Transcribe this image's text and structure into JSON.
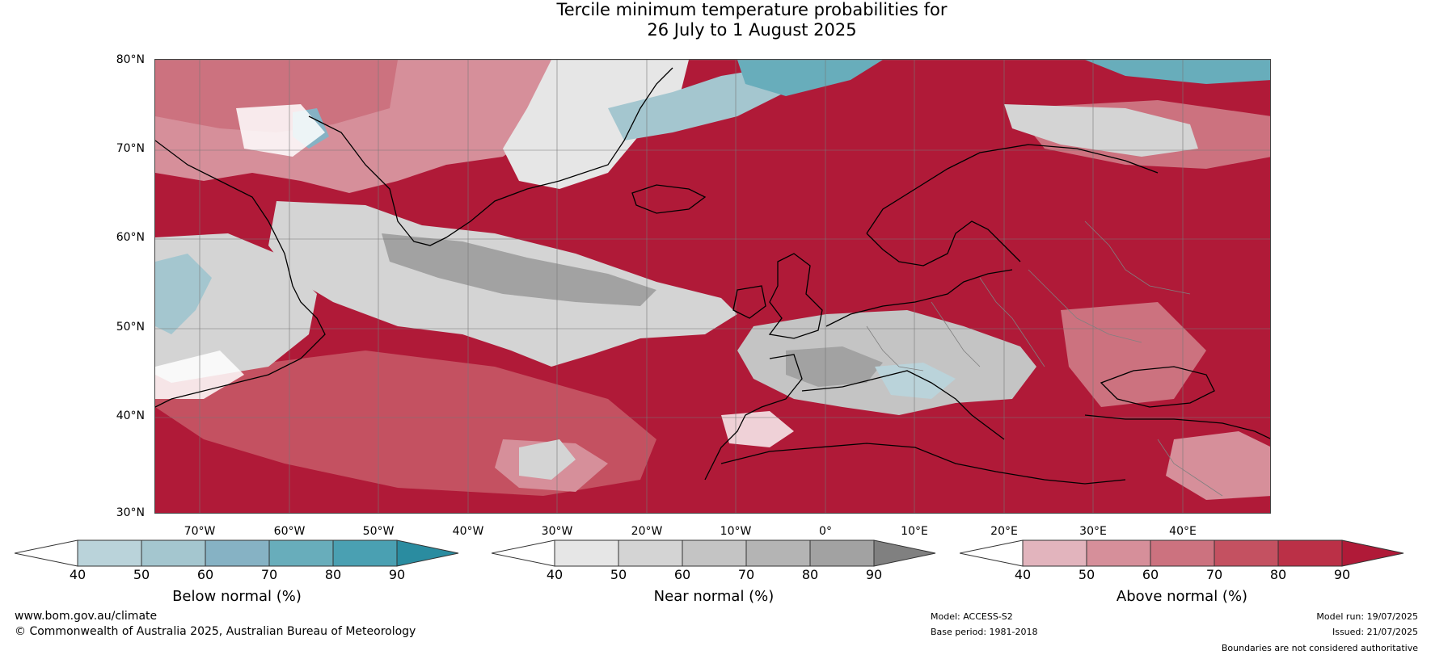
{
  "title": {
    "line1": "Tercile minimum temperature probabilities for",
    "line2": "26 July to 1 August 2025"
  },
  "map": {
    "latitude_labels": [
      "80°N",
      "70°N",
      "60°N",
      "50°N",
      "40°N",
      "30°N"
    ],
    "longitude_labels": [
      "70°W",
      "60°W",
      "50°W",
      "40°W",
      "30°W",
      "20°W",
      "10°W",
      "0°",
      "10°E",
      "20°E",
      "30°E",
      "40°E"
    ],
    "land_outline_color": "#000000",
    "border_color": "#808080"
  },
  "legends": [
    {
      "title": "Below normal (%)",
      "ticks": [
        "40",
        "50",
        "60",
        "70",
        "80",
        "90"
      ],
      "colors": [
        "#ffffff",
        "#bad3da",
        "#a4c6cf",
        "#86b2c4",
        "#68adbb",
        "#4aa0b2",
        "#2a8ca0"
      ]
    },
    {
      "title": "Near normal (%)",
      "ticks": [
        "40",
        "50",
        "60",
        "70",
        "80",
        "90"
      ],
      "colors": [
        "#ffffff",
        "#e6e6e6",
        "#d4d4d4",
        "#c4c4c4",
        "#b4b4b4",
        "#a2a2a2",
        "#808080"
      ]
    },
    {
      "title": "Above normal (%)",
      "ticks": [
        "40",
        "50",
        "60",
        "70",
        "80",
        "90"
      ],
      "colors": [
        "#ffffff",
        "#e2b4bd",
        "#d68f9a",
        "#cc727f",
        "#c45161",
        "#bb3047",
        "#b01a38"
      ]
    }
  ],
  "footer": {
    "website": "www.bom.gov.au/climate",
    "copyright": "© Commonwealth of Australia 2025, Australian Bureau of Meteorology",
    "model": "Model: ACCESS-S2",
    "base_period": "Base period: 1981-2018",
    "model_run": "Model run: 19/07/2025",
    "issued": "Issued: 21/07/2025",
    "disclaimer": "Boundaries are not considered authoritative"
  }
}
